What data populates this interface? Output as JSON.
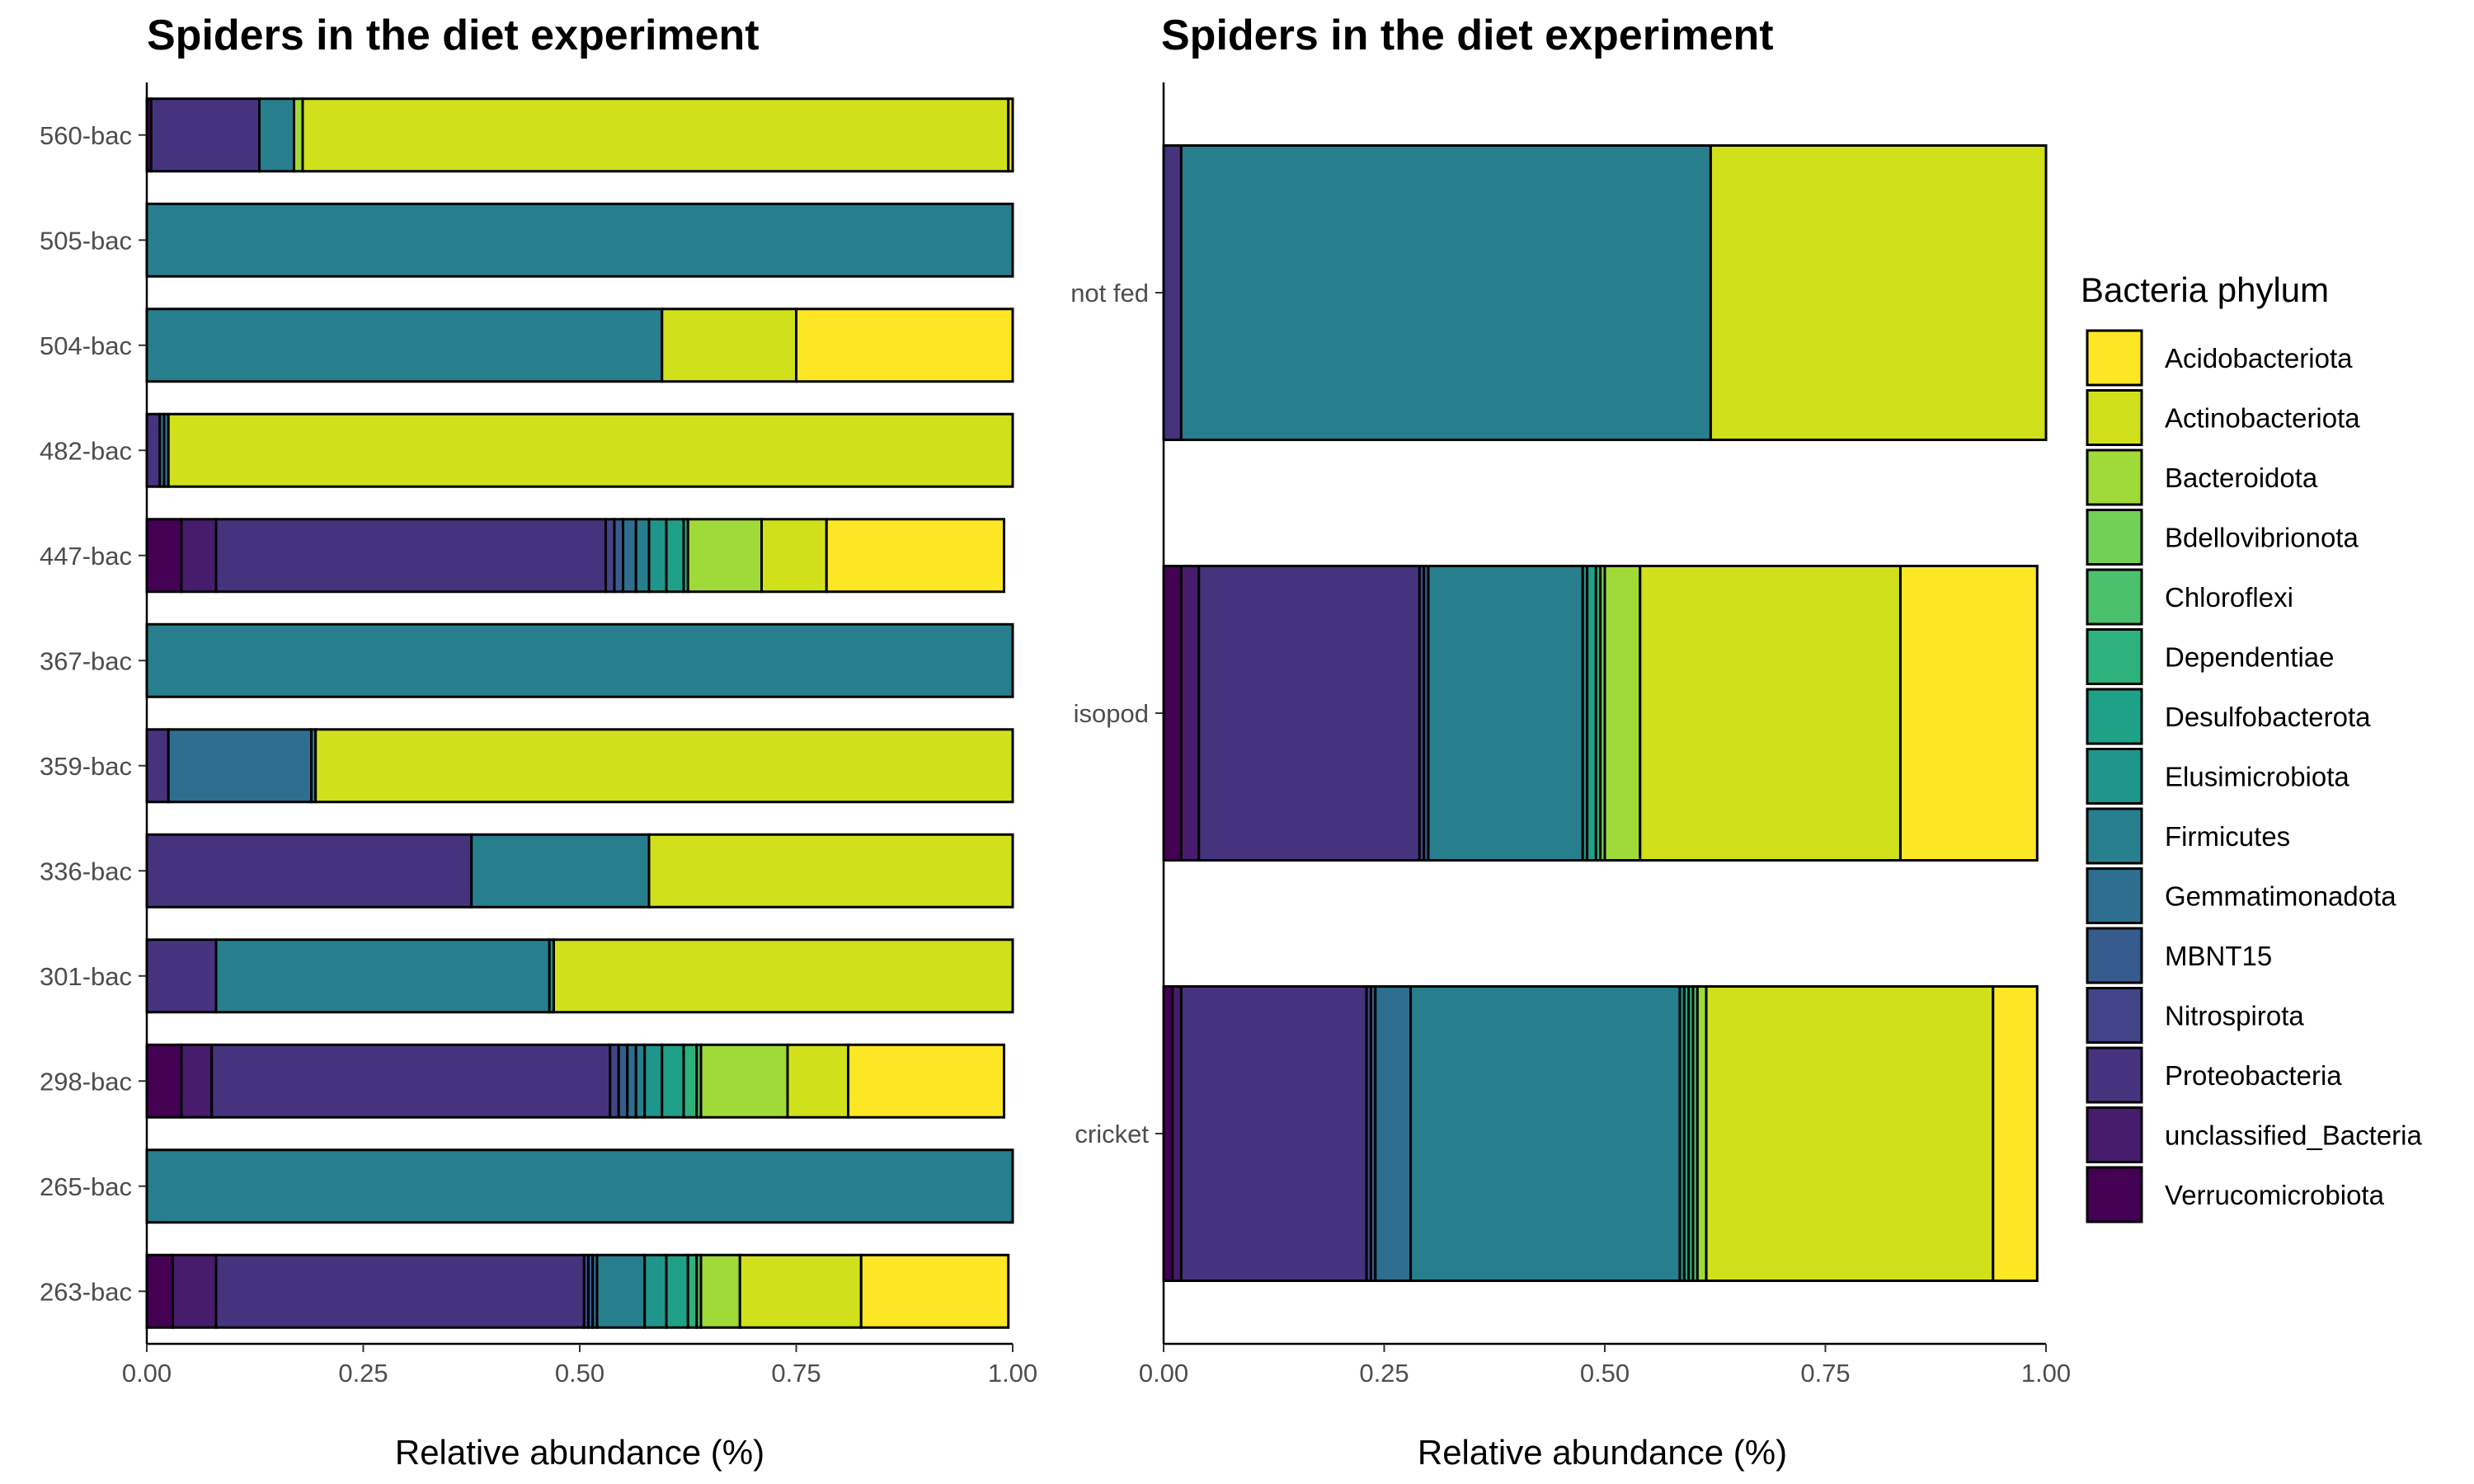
{
  "legend": {
    "title": "Bacteria phylum",
    "entries": [
      {
        "name": "Acidobacteriota",
        "color": "#FDE725"
      },
      {
        "name": "Actinobacteriota",
        "color": "#D0E11C"
      },
      {
        "name": "Bacteroidota",
        "color": "#A0DA39"
      },
      {
        "name": "Bdellovibrionota",
        "color": "#73D056"
      },
      {
        "name": "Chloroflexi",
        "color": "#4AC16D"
      },
      {
        "name": "Dependentiae",
        "color": "#2DB27D"
      },
      {
        "name": "Desulfobacterota",
        "color": "#1FA187"
      },
      {
        "name": "Elusimicrobiota",
        "color": "#1F968B"
      },
      {
        "name": "Firmicutes",
        "color": "#277F8E"
      },
      {
        "name": "Gemmatimonadota",
        "color": "#2E6E8E"
      },
      {
        "name": "MBNT15",
        "color": "#365C8D"
      },
      {
        "name": "Nitrospirota",
        "color": "#414487"
      },
      {
        "name": "Proteobacteria",
        "color": "#46337E"
      },
      {
        "name": "unclassified_Bacteria",
        "color": "#471C6C"
      },
      {
        "name": "Verrucomicrobiota",
        "color": "#440154"
      }
    ]
  },
  "chart_data": [
    {
      "type": "bar",
      "orientation": "horizontal",
      "stacked": true,
      "title": "Spiders in the diet experiment",
      "xlabel": "Relative abundance (%)",
      "ylabel": "",
      "xlim": [
        0,
        1
      ],
      "x_ticks": [
        "0.00",
        "0.25",
        "0.50",
        "0.75",
        "1.00"
      ],
      "categories": [
        "560-bac",
        "505-bac",
        "504-bac",
        "482-bac",
        "447-bac",
        "367-bac",
        "359-bac",
        "336-bac",
        "301-bac",
        "298-bac",
        "265-bac",
        "263-bac"
      ],
      "series": [
        {
          "name": "Verrucomicrobiota",
          "values": [
            0.005,
            0,
            0,
            0,
            0.04,
            0,
            0,
            0,
            0,
            0.04,
            0,
            0.03
          ]
        },
        {
          "name": "unclassified_Bacteria",
          "values": [
            0,
            0,
            0,
            0,
            0.04,
            0,
            0,
            0,
            0,
            0.035,
            0,
            0.05
          ]
        },
        {
          "name": "Proteobacteria",
          "values": [
            0.125,
            0,
            0,
            0.015,
            0.45,
            0,
            0.025,
            0.375,
            0.08,
            0.46,
            0,
            0.425
          ]
        },
        {
          "name": "Nitrospirota",
          "values": [
            0,
            0,
            0,
            0,
            0.01,
            0,
            0,
            0,
            0,
            0.01,
            0,
            0.005
          ]
        },
        {
          "name": "MBNT15",
          "values": [
            0,
            0,
            0,
            0,
            0.01,
            0,
            0,
            0,
            0,
            0.01,
            0,
            0.005
          ]
        },
        {
          "name": "Gemmatimonadota",
          "values": [
            0,
            0,
            0,
            0.005,
            0.015,
            0,
            0.165,
            0,
            0,
            0.01,
            0,
            0.005
          ]
        },
        {
          "name": "Firmicutes",
          "values": [
            0.04,
            1.0,
            0.595,
            0.005,
            0.015,
            1.0,
            0.005,
            0.205,
            0.385,
            0.01,
            1.0,
            0.055
          ]
        },
        {
          "name": "Elusimicrobiota",
          "values": [
            0,
            0,
            0,
            0,
            0.02,
            0,
            0,
            0,
            0.005,
            0.02,
            0,
            0.025
          ]
        },
        {
          "name": "Desulfobacterota",
          "values": [
            0,
            0,
            0,
            0,
            0.02,
            0,
            0,
            0,
            0,
            0.025,
            0,
            0.025
          ]
        },
        {
          "name": "Dependentiae",
          "values": [
            0,
            0,
            0,
            0,
            0.005,
            0,
            0,
            0,
            0,
            0.015,
            0,
            0.01
          ]
        },
        {
          "name": "Chloroflexi",
          "values": [
            0,
            0,
            0,
            0,
            0,
            0,
            0,
            0,
            0,
            0.005,
            0,
            0.005
          ]
        },
        {
          "name": "Bdellovibrionota",
          "values": [
            0,
            0,
            0,
            0,
            0,
            0,
            0,
            0,
            0,
            0,
            0,
            0
          ]
        },
        {
          "name": "Bacteroidota",
          "values": [
            0.01,
            0,
            0,
            0,
            0.085,
            0,
            0,
            0,
            0,
            0.1,
            0,
            0.045
          ]
        },
        {
          "name": "Actinobacteriota",
          "values": [
            0.815,
            0,
            0.155,
            0.975,
            0.075,
            0,
            0.805,
            0.42,
            0.53,
            0.07,
            0,
            0.14
          ]
        },
        {
          "name": "Acidobacteriota",
          "values": [
            0.005,
            0,
            0.25,
            0,
            0.205,
            0,
            0,
            0,
            0,
            0.18,
            0,
            0.17
          ]
        }
      ]
    },
    {
      "type": "bar",
      "orientation": "horizontal",
      "stacked": true,
      "title": "Spiders in the diet experiment",
      "xlabel": "Relative abundance (%)",
      "ylabel": "",
      "xlim": [
        0,
        1
      ],
      "x_ticks": [
        "0.00",
        "0.25",
        "0.50",
        "0.75",
        "1.00"
      ],
      "categories": [
        "not fed",
        "isopod",
        "cricket"
      ],
      "series": [
        {
          "name": "Verrucomicrobiota",
          "values": [
            0,
            0.02,
            0.01
          ]
        },
        {
          "name": "unclassified_Bacteria",
          "values": [
            0,
            0.02,
            0.01
          ]
        },
        {
          "name": "Proteobacteria",
          "values": [
            0.02,
            0.25,
            0.21
          ]
        },
        {
          "name": "Nitrospirota",
          "values": [
            0,
            0.005,
            0.005
          ]
        },
        {
          "name": "MBNT15",
          "values": [
            0,
            0.005,
            0.005
          ]
        },
        {
          "name": "Gemmatimonadota",
          "values": [
            0,
            0,
            0.04
          ]
        },
        {
          "name": "Firmicutes",
          "values": [
            0.6,
            0.175,
            0.305
          ]
        },
        {
          "name": "Elusimicrobiota",
          "values": [
            0,
            0.005,
            0.005
          ]
        },
        {
          "name": "Desulfobacterota",
          "values": [
            0,
            0.01,
            0.005
          ]
        },
        {
          "name": "Dependentiae",
          "values": [
            0,
            0.005,
            0.005
          ]
        },
        {
          "name": "Chloroflexi",
          "values": [
            0,
            0,
            0.005
          ]
        },
        {
          "name": "Bdellovibrionota",
          "values": [
            0,
            0.005,
            0
          ]
        },
        {
          "name": "Bacteroidota",
          "values": [
            0,
            0.04,
            0.01
          ]
        },
        {
          "name": "Actinobacteriota",
          "values": [
            0.38,
            0.295,
            0.325
          ]
        },
        {
          "name": "Acidobacteriota",
          "values": [
            0,
            0.155,
            0.05
          ]
        }
      ]
    }
  ]
}
